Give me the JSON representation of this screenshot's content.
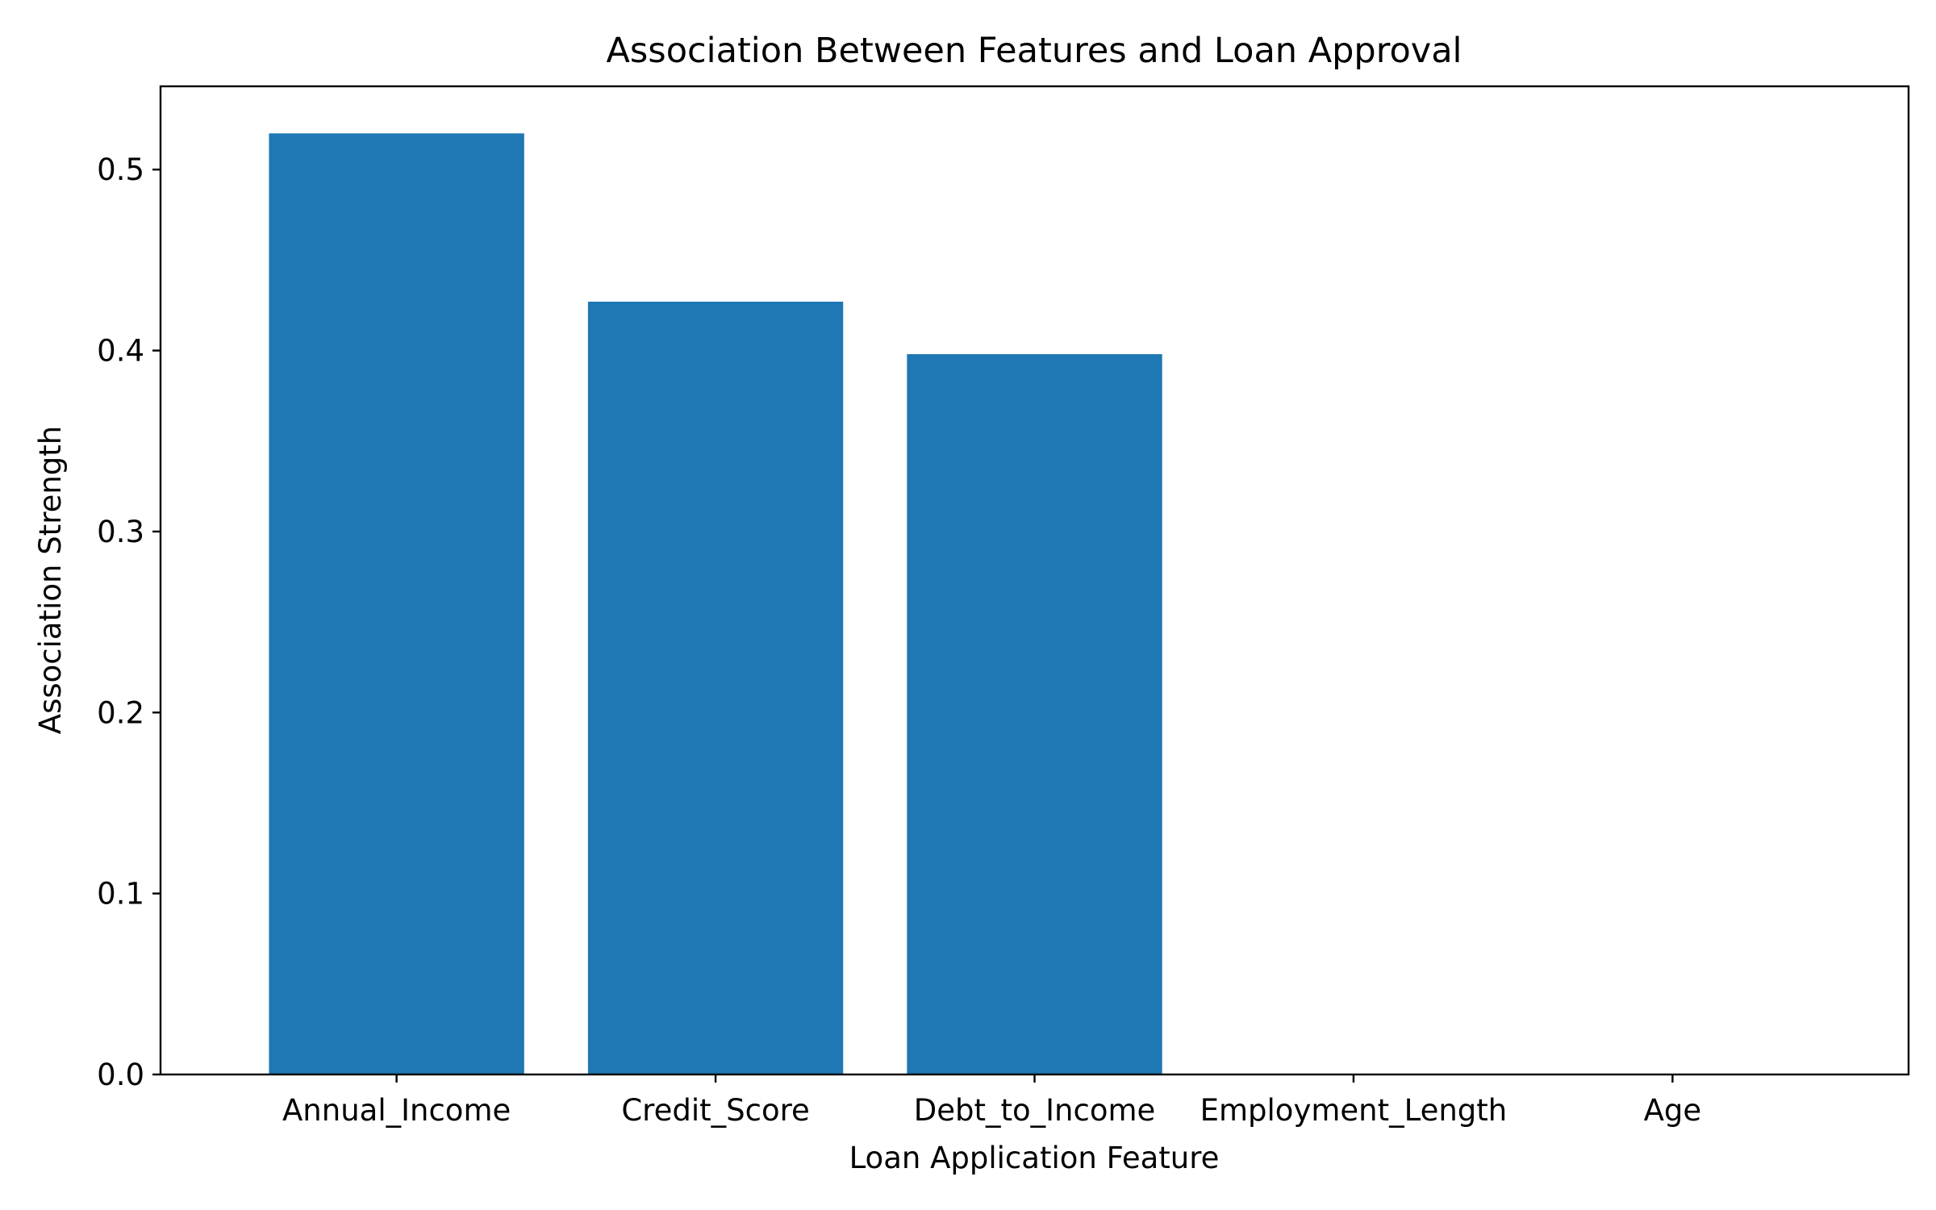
{
  "chart_data": {
    "type": "bar",
    "title": "Association Between Features and Loan Approval",
    "xlabel": "Loan Application Feature",
    "ylabel": "Association Strength",
    "categories": [
      "Annual_Income",
      "Credit_Score",
      "Debt_to_Income",
      "Employment_Length",
      "Age"
    ],
    "values": [
      0.52,
      0.427,
      0.398,
      0.0,
      0.0
    ],
    "ylim": [
      0,
      0.546
    ],
    "yticks": [
      0.0,
      0.1,
      0.2,
      0.3,
      0.4,
      0.5
    ],
    "ytick_labels": [
      "0.0",
      "0.1",
      "0.2",
      "0.3",
      "0.4",
      "0.5"
    ],
    "grid": false,
    "legend": "none",
    "bar_color": "#1f77b4"
  }
}
